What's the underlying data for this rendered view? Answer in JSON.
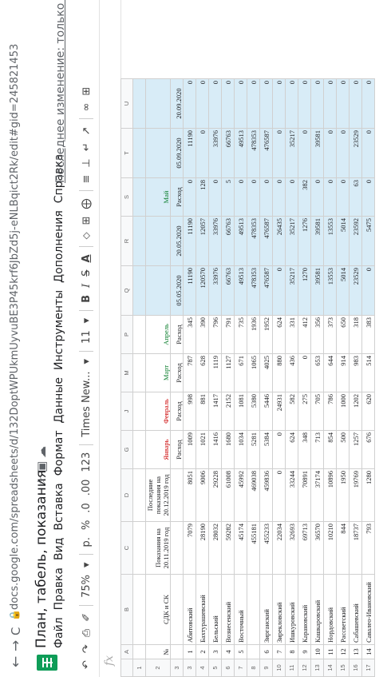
{
  "browser": {
    "back_icon": "←",
    "forward_icon": "→",
    "reload_icon": "C",
    "lock_icon": "🔒",
    "url": "docs.google.com/spreadsheets/d/132DoptWPUkmUyvuBE3P45krf6JbZd5j-eNLBqict2Rk/edit#gid=245821453"
  },
  "app": {
    "title": "План, табель, показания",
    "star_icon": "☆",
    "move_icon": "▣",
    "cloud_icon": "☁",
    "menu": [
      "Файл",
      "Правка",
      "Вид",
      "Вставка",
      "Формат",
      "Данные",
      "Инструменты",
      "Дополнения",
      "Справка"
    ],
    "last_edit": "Последнее изменение: только что"
  },
  "toolbar": {
    "undo": "↶",
    "redo": "↷",
    "print": "⎙",
    "paint": "✐",
    "zoom": "75%",
    "currency": "р.",
    "percent": "%",
    "dec_less": ".0",
    "dec_more": ".00",
    "more_formats": "123",
    "font": "Times New...",
    "font_size": "11",
    "bold": "B",
    "italic": "I",
    "strike": "S",
    "text_color": "A",
    "fill": "⬦",
    "borders": "⊞",
    "merge": "⨁",
    "halign": "≡",
    "valign": "⊥",
    "wrap": "↵",
    "rotate": "↗",
    "link": "∞",
    "comment": "⊞",
    "chevron": "▾"
  },
  "formula_bar": {
    "fx": "fx"
  },
  "sheet": {
    "columns": [
      "",
      "A",
      "B",
      "C",
      "D",
      "G",
      "J",
      "M",
      "P",
      "Q",
      "R",
      "S",
      "T",
      "U"
    ],
    "header_rows": [
      {
        "rn": "1",
        "cells": [
          "",
          "",
          "",
          "",
          "",
          "",
          "",
          "",
          "",
          "",
          "",
          "",
          ""
        ]
      },
      {
        "rn": "2",
        "cells": [
          "№",
          "СДК и СК",
          "Показания на 20.11.2019 год",
          "Последние показания на 20.12.2019 год",
          "Январь",
          "Февраль",
          "Март",
          "Апрель",
          "",
          "",
          "Май",
          "",
          ""
        ]
      },
      {
        "rn": "3",
        "cells": [
          "",
          "",
          "",
          "",
          "Расход",
          "Расход",
          "Расход",
          "Расход",
          "05.05.2020",
          "20.05.2020",
          "Расход",
          "05.09.2020",
          "20.09.2020"
        ]
      }
    ],
    "rows": [
      {
        "rn": "3",
        "n": "1",
        "name": "Абитовский",
        "c": "7079",
        "d": "8051",
        "g": "1009",
        "j": "998",
        "m": "787",
        "p": "345",
        "q": "11190",
        "r": "11190",
        "s": "0",
        "t": "11190",
        "u": "0"
      },
      {
        "rn": "4",
        "n": "2",
        "name": "Бахтурашевский",
        "c": "28190",
        "d": "9006",
        "g": "1021",
        "j": "881",
        "m": "628",
        "p": "390",
        "q": "120570",
        "r": "12057",
        "s": "128",
        "t": "0",
        "u": "0"
      },
      {
        "rn": "5",
        "n": "3",
        "name": "Бельский",
        "c": "28032",
        "d": "29228",
        "g": "1416",
        "j": "1417",
        "m": "1119",
        "p": "796",
        "q": "33976",
        "r": "33976",
        "s": "0",
        "t": "33976",
        "u": "0"
      },
      {
        "rn": "6",
        "n": "4",
        "name": "Вознесенский",
        "c": "59282",
        "d": "61008",
        "g": "1680",
        "j": "2152",
        "m": "1127",
        "p": "791",
        "q": "66763",
        "r": "66763",
        "s": "5",
        "t": "66763",
        "u": "0"
      },
      {
        "rn": "7",
        "n": "5",
        "name": "Восточный",
        "c": "45174",
        "d": "45992",
        "g": "1034",
        "j": "1081",
        "m": "671",
        "p": "735",
        "q": "49513",
        "r": "49513",
        "s": "0",
        "t": "49513",
        "u": "0"
      },
      {
        "rn": "8",
        "n": "",
        "name": "",
        "c": "455181",
        "d": "469038",
        "g": "5281",
        "j": "5380",
        "m": "1065",
        "p": "1936",
        "q": "478353",
        "r": "478353",
        "s": "0",
        "t": "478353",
        "u": "0"
      },
      {
        "rn": "9",
        "n": "6",
        "name": "Зирганский",
        "c": "455233",
        "d": "459836",
        "g": "5384",
        "j": "5446",
        "m": "4025",
        "p": "1952",
        "q": "476587",
        "r": "476587",
        "s": "0",
        "t": "476587",
        "u": "0"
      },
      {
        "rn": "10",
        "n": "7",
        "name": "Зирекловский",
        "c": "22034",
        "d": "0",
        "g": "0",
        "j": "24931",
        "m": "880",
        "p": "624",
        "q": "0",
        "r": "26435",
        "s": "0",
        "t": "0",
        "u": "0"
      },
      {
        "rn": "11",
        "n": "8",
        "name": "Ишкуровский",
        "c": "32693",
        "d": "33244",
        "g": "624",
        "j": "582",
        "m": "436",
        "p": "331",
        "q": "35217",
        "r": "35217",
        "s": "0",
        "t": "35217",
        "u": "0"
      },
      {
        "rn": "12",
        "n": "9",
        "name": "Карановский",
        "c": "69713",
        "d": "70891",
        "g": "348",
        "j": "275",
        "m": "0",
        "p": "412",
        "q": "1270",
        "r": "1276",
        "s": "382",
        "t": "0",
        "u": "0"
      },
      {
        "rn": "13",
        "n": "10",
        "name": "Кашкаровский",
        "c": "36570",
        "d": "37174",
        "g": "713",
        "j": "705",
        "m": "653",
        "p": "356",
        "q": "39581",
        "r": "39581",
        "s": "0",
        "t": "39581",
        "u": "0"
      },
      {
        "rn": "14",
        "n": "11",
        "name": "Нордовский",
        "c": "10210",
        "d": "10896",
        "g": "854",
        "j": "786",
        "m": "644",
        "p": "373",
        "q": "13553",
        "r": "13553",
        "s": "0",
        "t": "0",
        "u": "0"
      },
      {
        "rn": "15",
        "n": "12",
        "name": "Рассветский",
        "c": "844",
        "d": "1950",
        "g": "500",
        "j": "1000",
        "m": "914",
        "p": "650",
        "q": "5014",
        "r": "5014",
        "s": "0",
        "t": "0",
        "u": "0"
      },
      {
        "rn": "16",
        "n": "13",
        "name": "Сабашевский",
        "c": "18737",
        "d": "19769",
        "g": "1257",
        "j": "1202",
        "m": "983",
        "p": "318",
        "q": "23529",
        "r": "23592",
        "s": "63",
        "t": "23529",
        "u": "0"
      },
      {
        "rn": "17",
        "n": "14",
        "name": "Савалео-Ивановский",
        "c": "793",
        "d": "1280",
        "g": "676",
        "j": "620",
        "m": "514",
        "p": "383",
        "q": "0",
        "r": "5475",
        "s": "0",
        "t": "0",
        "u": "0"
      }
    ]
  }
}
